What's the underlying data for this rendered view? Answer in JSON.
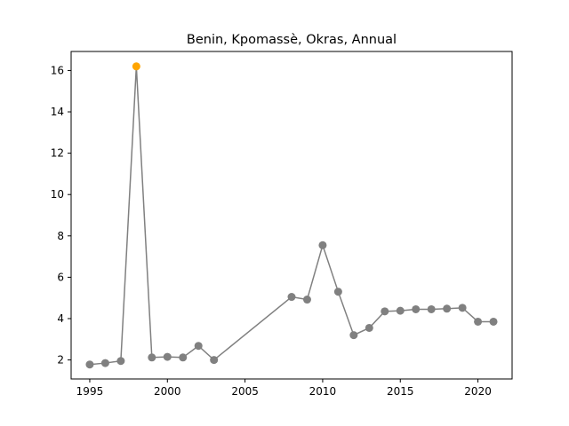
{
  "chart_data": {
    "type": "line",
    "title": "Benin, Kpomassè, Okras, Annual",
    "xlabel": "",
    "ylabel": "",
    "xlim": [
      1993.8,
      2022.2
    ],
    "ylim": [
      1.08,
      16.92
    ],
    "x_ticks": [
      1995,
      2000,
      2005,
      2010,
      2015,
      2020
    ],
    "y_ticks": [
      2,
      4,
      6,
      8,
      10,
      12,
      14,
      16
    ],
    "grid": false,
    "series": [
      {
        "line_color": "#808080",
        "marker_color": "#808080",
        "highlight_color": "#ffa500",
        "highlight_x": 1998,
        "points": [
          {
            "x": 1995,
            "y": 1.78
          },
          {
            "x": 1996,
            "y": 1.85
          },
          {
            "x": 1997,
            "y": 1.95
          },
          {
            "x": 1998,
            "y": 16.2
          },
          {
            "x": 1999,
            "y": 2.12
          },
          {
            "x": 2000,
            "y": 2.15
          },
          {
            "x": 2001,
            "y": 2.12
          },
          {
            "x": 2002,
            "y": 2.68
          },
          {
            "x": 2003,
            "y": 2.0
          },
          {
            "x": 2008,
            "y": 5.05
          },
          {
            "x": 2009,
            "y": 4.92
          },
          {
            "x": 2010,
            "y": 7.55
          },
          {
            "x": 2011,
            "y": 5.3
          },
          {
            "x": 2012,
            "y": 3.2
          },
          {
            "x": 2013,
            "y": 3.55
          },
          {
            "x": 2014,
            "y": 4.35
          },
          {
            "x": 2015,
            "y": 4.38
          },
          {
            "x": 2016,
            "y": 4.45
          },
          {
            "x": 2017,
            "y": 4.45
          },
          {
            "x": 2018,
            "y": 4.48
          },
          {
            "x": 2019,
            "y": 4.52
          },
          {
            "x": 2020,
            "y": 3.85
          },
          {
            "x": 2021,
            "y": 3.85
          }
        ]
      }
    ]
  }
}
